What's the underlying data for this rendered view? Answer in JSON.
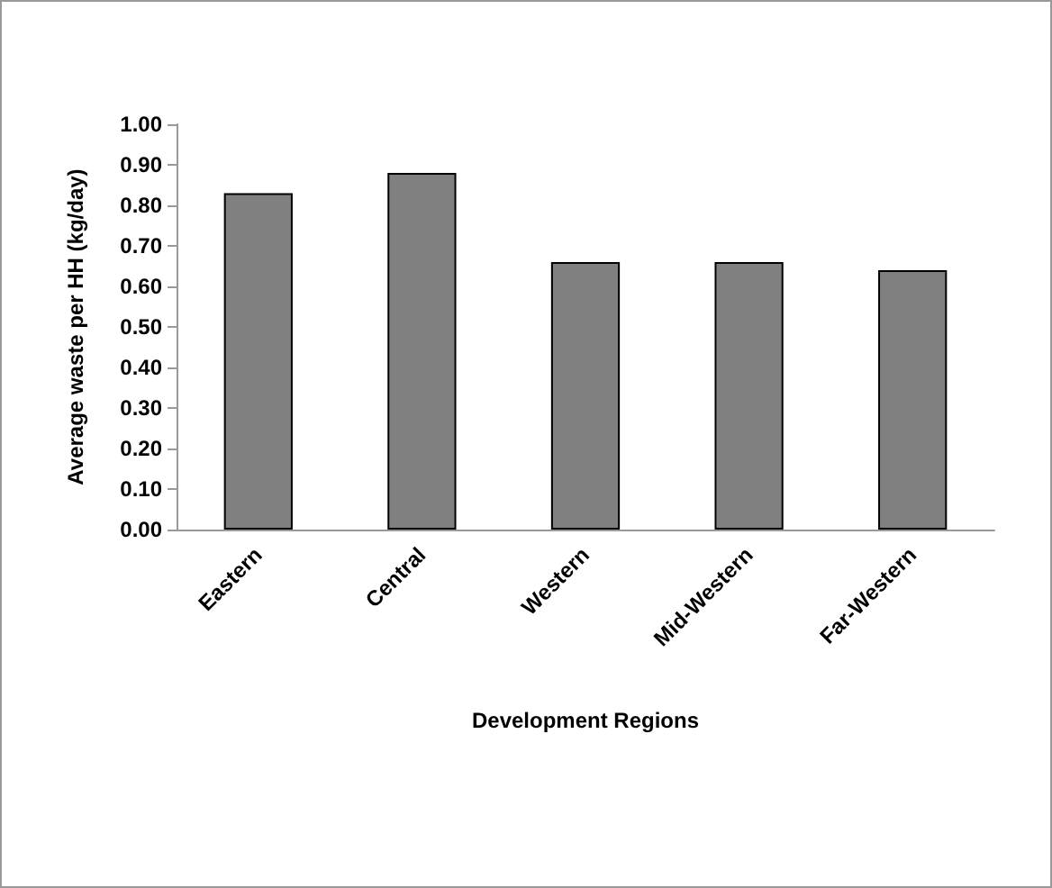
{
  "chart_data": {
    "type": "bar",
    "xlabel": "Development Regions",
    "ylabel": "Average waste per HH (kg/day)",
    "categories": [
      "Eastern",
      "Central",
      "Western",
      "Mid-Western",
      "Far-Western"
    ],
    "values": [
      0.83,
      0.88,
      0.66,
      0.66,
      0.64
    ],
    "color": "#808080",
    "ylim": [
      0,
      1
    ],
    "yticks": [
      {
        "value": 0,
        "label": "0.00"
      },
      {
        "value": 0.1,
        "label": "0.10"
      },
      {
        "value": 0.2,
        "label": "0.20"
      },
      {
        "value": 0.3,
        "label": "0.30"
      },
      {
        "value": 0.4,
        "label": "0.40"
      },
      {
        "value": 0.5,
        "label": "0.50"
      },
      {
        "value": 0.6,
        "label": "0.60"
      },
      {
        "value": 0.7,
        "label": "0.70"
      },
      {
        "value": 0.8,
        "label": "0.80"
      },
      {
        "value": 0.9,
        "label": "0.90"
      },
      {
        "value": 1,
        "label": "1.00"
      }
    ],
    "grid": false
  }
}
